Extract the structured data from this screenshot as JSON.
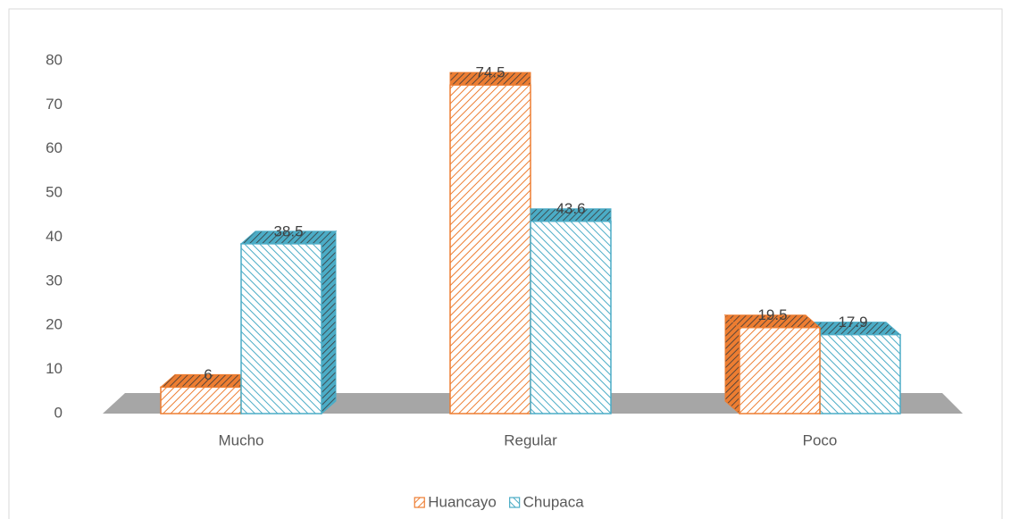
{
  "chart_data": {
    "type": "bar3d",
    "categories": [
      "Mucho",
      "Regular",
      "Poco"
    ],
    "series": [
      {
        "name": "Huancayo",
        "color": "#ed7d31",
        "values": [
          6,
          74.5,
          19.5
        ]
      },
      {
        "name": "Chupaca",
        "color": "#4bacc6",
        "values": [
          38.5,
          43.6,
          17.9
        ]
      }
    ],
    "ylim": [
      0,
      80
    ],
    "yticks": [
      0,
      10,
      20,
      30,
      40,
      50,
      60,
      70,
      80
    ],
    "grid": false,
    "legend": "bottom",
    "data_labels": true
  }
}
